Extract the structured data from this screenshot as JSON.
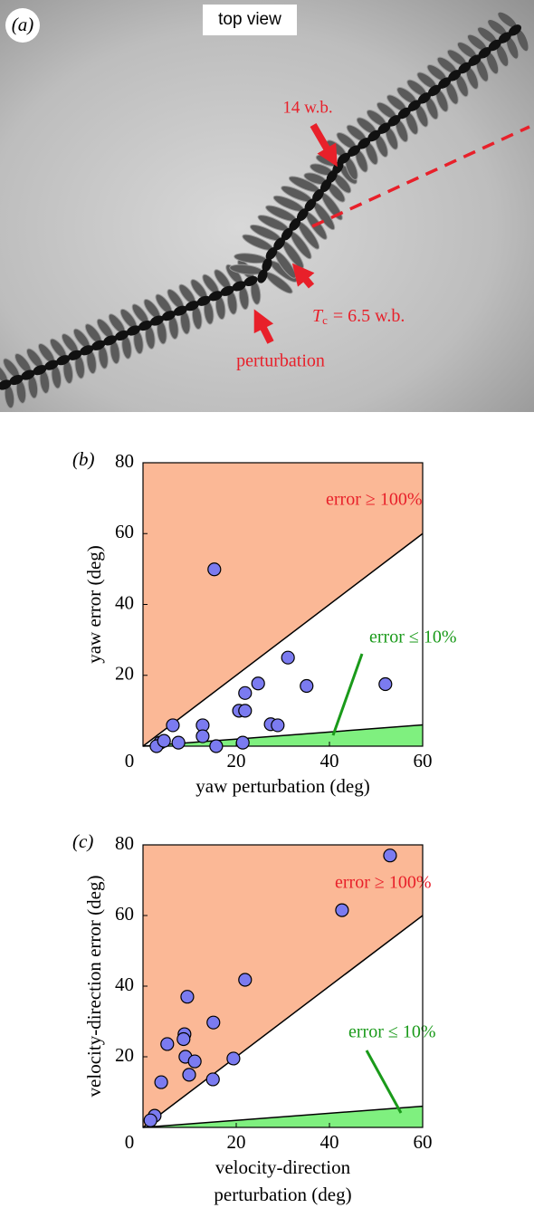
{
  "photo_panel": {
    "panel_label": "(a)",
    "view_label": "top view",
    "label_wb": "14 w.b.",
    "label_tc": {
      "symbol": "T",
      "subscript": "c",
      "text": "= 6.5 w.b."
    },
    "label_perturbation": "perturbation"
  },
  "chart_data": [
    {
      "type": "scatter",
      "panel_label": "(b)",
      "xlabel": [
        "yaw perturbation (deg)"
      ],
      "ylabel": "yaw error (deg)",
      "xlim": [
        0,
        60
      ],
      "ylim": [
        0,
        80
      ],
      "xticks": [
        0,
        20,
        40,
        60
      ],
      "yticks": [
        20,
        40,
        60,
        80
      ],
      "regions": [
        {
          "label": "error ≥ 100%",
          "slope": 1,
          "side": "above",
          "color": "#fbb896",
          "label_color": "#e8202a"
        },
        {
          "label": "error ≤ 10%",
          "slope": 0.1,
          "side": "below",
          "color": "#7ff07f",
          "label_color": "#1a9a1a"
        }
      ],
      "series": [
        {
          "color": "#7b7bf0",
          "x": [
            15.3,
            6.4,
            12.8,
            12.8,
            7.6,
            3.7,
            2.9,
            4.5,
            15.7,
            20.6,
            21.9,
            21.9,
            24.7,
            21.4,
            27.4,
            28.9,
            31.1,
            35.1,
            52
          ],
          "values": [
            49.9,
            5.9,
            5.9,
            2.8,
            1,
            1,
            0,
            1.5,
            0,
            10,
            10,
            15,
            17.7,
            1,
            6.2,
            5.9,
            25,
            17,
            17.5
          ]
        }
      ]
    },
    {
      "type": "scatter",
      "panel_label": "(c)",
      "xlabel": [
        "velocity-direction",
        "perturbation (deg)"
      ],
      "ylabel": "velocity-direction error (deg)",
      "xlim": [
        0,
        60
      ],
      "ylim": [
        0,
        80
      ],
      "xticks": [
        0,
        20,
        40,
        60
      ],
      "yticks": [
        20,
        40,
        60,
        80
      ],
      "regions": [
        {
          "label": "error ≥ 100%",
          "slope": 1,
          "side": "above",
          "color": "#fbb896",
          "label_color": "#e8202a"
        },
        {
          "label": "error ≤ 10%",
          "slope": 0.1,
          "side": "below",
          "color": "#7ff07f",
          "label_color": "#1a9a1a"
        }
      ],
      "series": [
        {
          "color": "#7b7bf0",
          "x": [
            53,
            42.7,
            21.9,
            9.5,
            5.2,
            8.9,
            8.7,
            9.1,
            3.9,
            9.9,
            11.1,
            15.1,
            15,
            19.4,
            2.5,
            1.6
          ],
          "values": [
            77,
            61.5,
            41.8,
            37,
            23.6,
            26.4,
            25,
            20,
            12.8,
            14.9,
            18.7,
            29.7,
            13.6,
            19.5,
            3.3,
            2
          ]
        }
      ]
    }
  ]
}
